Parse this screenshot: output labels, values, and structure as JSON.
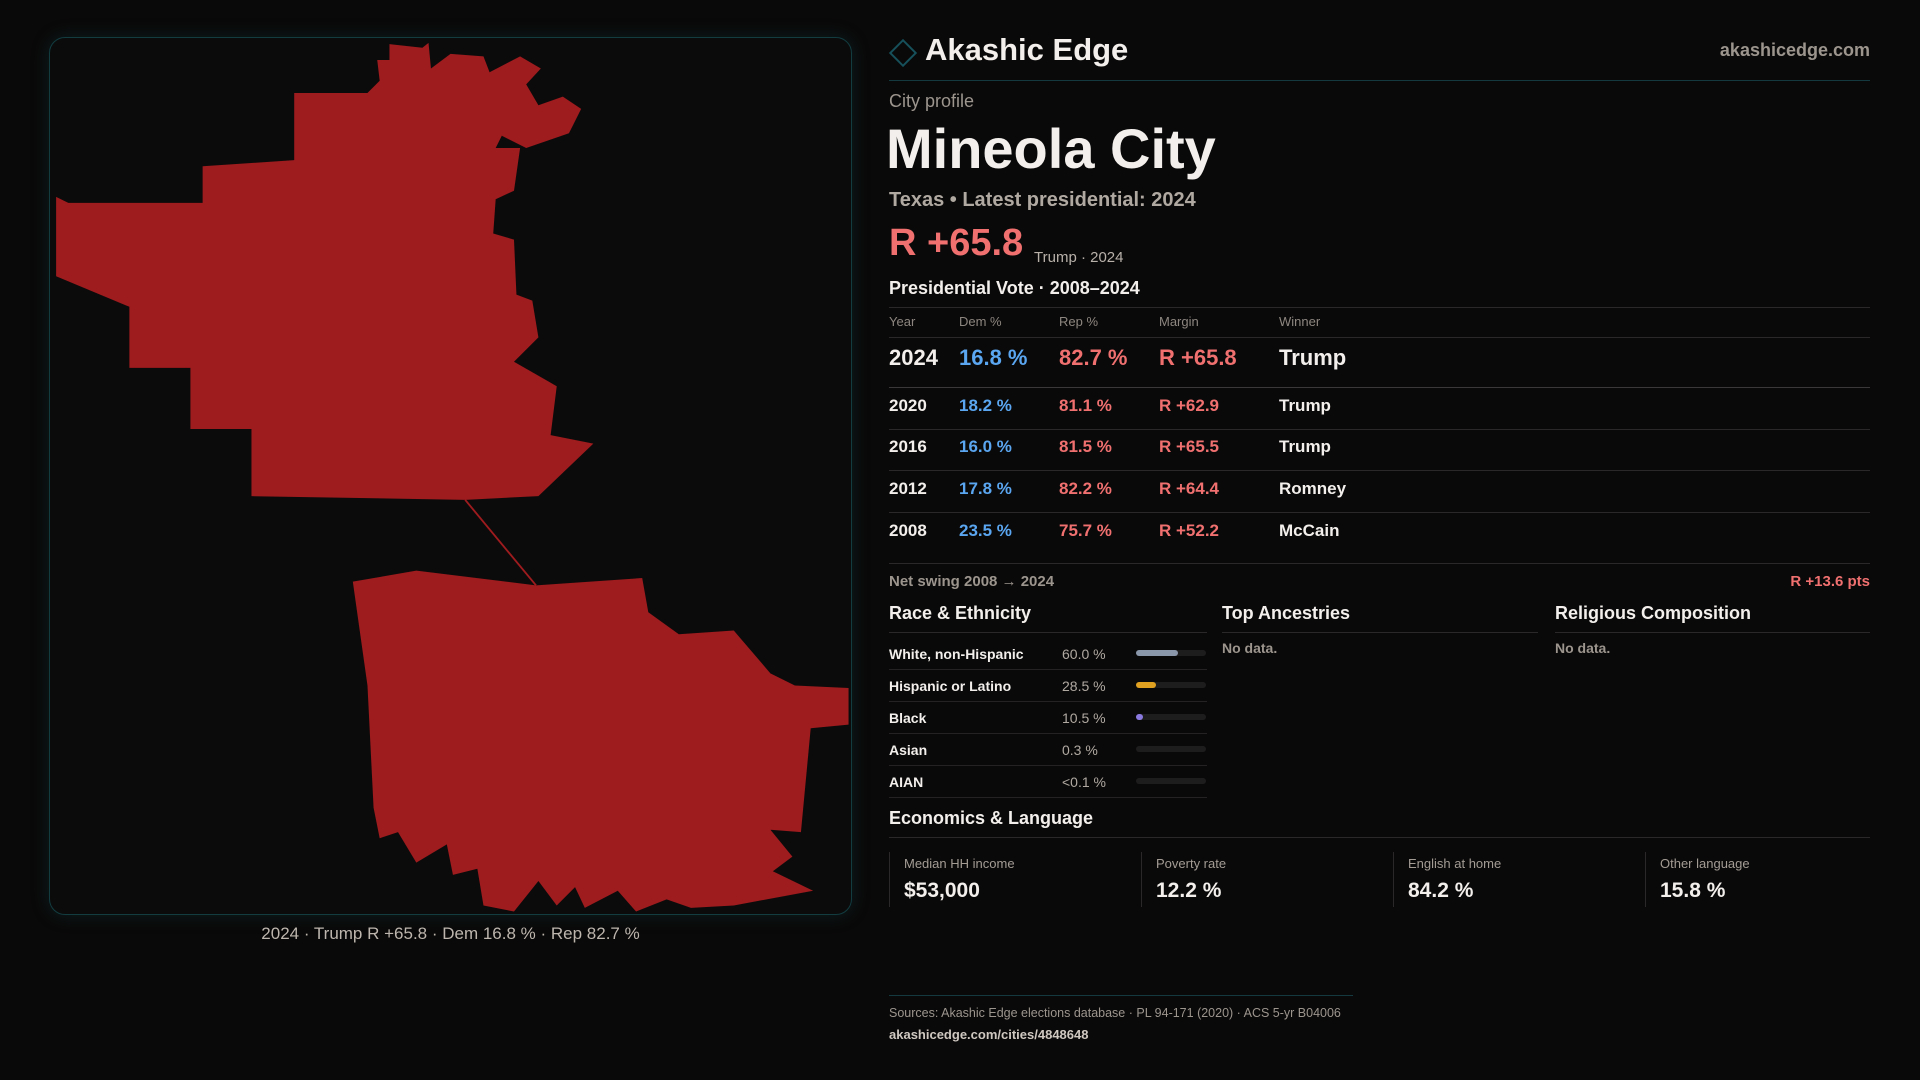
{
  "brand": {
    "name": "Akashic Edge",
    "site": "akashicedge.com"
  },
  "profile": {
    "kicker": "City profile",
    "title": "Mineola City",
    "subtitle": "Texas • Latest presidential: 2024",
    "margin": "R +65.8",
    "margin_note": "Trump · 2024"
  },
  "vote": {
    "heading": "Presidential Vote · 2008–2024",
    "columns": [
      "Year",
      "Dem %",
      "Rep %",
      "Margin",
      "Winner"
    ],
    "rows": [
      {
        "year": "2024",
        "dem": "16.8 %",
        "rep": "82.7 %",
        "margin": "R +65.8",
        "winner": "Trump"
      },
      {
        "year": "2020",
        "dem": "18.2 %",
        "rep": "81.1 %",
        "margin": "R +62.9",
        "winner": "Trump"
      },
      {
        "year": "2016",
        "dem": "16.0 %",
        "rep": "81.5 %",
        "margin": "R +65.5",
        "winner": "Trump"
      },
      {
        "year": "2012",
        "dem": "17.8 %",
        "rep": "82.2 %",
        "margin": "R +64.4",
        "winner": "Romney"
      },
      {
        "year": "2008",
        "dem": "23.5 %",
        "rep": "75.7 %",
        "margin": "R +52.2",
        "winner": "McCain"
      }
    ],
    "swing_label": "Net swing 2008 → 2024",
    "swing_value": "R +13.6 pts"
  },
  "race": {
    "heading": "Race & Ethnicity",
    "rows": [
      {
        "label": "White, non-Hispanic",
        "value": "60.0 %",
        "pct": 60.0,
        "color": "#8a96aa"
      },
      {
        "label": "Hispanic or Latino",
        "value": "28.5 %",
        "pct": 28.5,
        "color": "#e0a020"
      },
      {
        "label": "Black",
        "value": "10.5 %",
        "pct": 10.5,
        "color": "#8a7ae0"
      },
      {
        "label": "Asian",
        "value": "0.3 %",
        "pct": 0.3,
        "color": "#8a96aa"
      },
      {
        "label": "AIAN",
        "value": "<0.1 %",
        "pct": 0.05,
        "color": "#8a96aa"
      }
    ]
  },
  "ancestries": {
    "heading": "Top Ancestries",
    "empty": "No data."
  },
  "religion": {
    "heading": "Religious Composition",
    "empty": "No data."
  },
  "econ": {
    "heading": "Economics & Language",
    "stats": [
      {
        "label": "Median HH income",
        "value": "$53,000"
      },
      {
        "label": "Poverty rate",
        "value": "12.2 %"
      },
      {
        "label": "English at home",
        "value": "84.2 %"
      },
      {
        "label": "Other language",
        "value": "15.8 %"
      }
    ]
  },
  "map": {
    "caption": "2024 · Trump R +65.8 · Dem 16.8 % · Rep 82.7 %",
    "fill": "#9e1b1e"
  },
  "footer": {
    "sources": "Sources: Akashic Edge elections database · PL 94-171 (2020) · ACS 5-yr B04006",
    "url": "akashicedge.com/cities/4848648"
  }
}
